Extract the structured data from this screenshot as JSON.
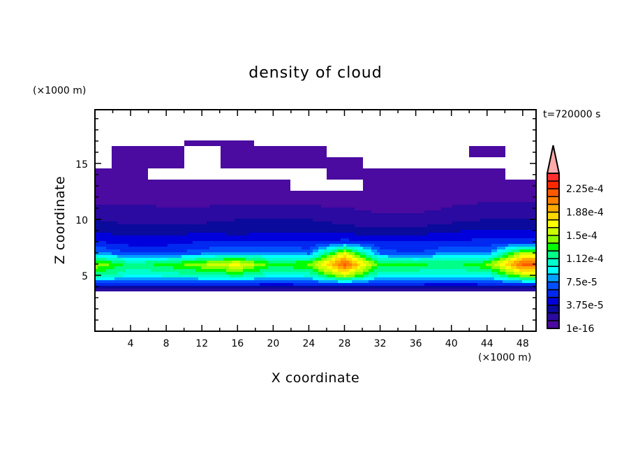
{
  "chart_data": {
    "type": "heatmap",
    "title": "density of cloud",
    "xlabel": "X coordinate",
    "ylabel": "Z coordinate",
    "x_unit": "(×1000 m)",
    "y_unit": "(×1000 m)",
    "annotation": "t=720000 s",
    "xlim": [
      0,
      49.5
    ],
    "ylim": [
      0,
      19.8
    ],
    "x_ticks": [
      4,
      8,
      12,
      16,
      20,
      24,
      28,
      32,
      36,
      40,
      44,
      48
    ],
    "y_ticks": [
      5,
      10,
      15
    ],
    "grid": false,
    "colorbar": {
      "placement": "right",
      "extend": "max",
      "levels_min": 1e-16,
      "level_step": 1.25e-05,
      "tick_labels": [
        "1e-16",
        "3.75e-5",
        "7.5e-5",
        "1.12e-4",
        "1.5e-4",
        "1.88e-4",
        "2.25e-4"
      ],
      "colors": [
        "#4b0aa0",
        "#2a0aa0",
        "#0a0a9c",
        "#0000dc",
        "#0028f0",
        "#0050ff",
        "#00a0ff",
        "#00ffff",
        "#00ffcc",
        "#00ff88",
        "#00ff00",
        "#88ff00",
        "#ccff00",
        "#ffff00",
        "#ffd800",
        "#ffaa00",
        "#ff8000",
        "#ff5a00",
        "#ff2800",
        "#ff2e2e"
      ],
      "over_color": "#ffaaaa"
    },
    "grid_x": [
      0,
      4,
      8,
      12,
      16,
      20,
      24,
      28,
      32,
      36,
      40,
      44,
      48
    ],
    "grid_z": [
      3,
      4,
      5,
      6,
      7,
      8,
      9,
      10,
      11,
      12,
      13,
      14,
      15,
      16,
      17
    ],
    "values": [
      [
        null,
        null,
        null,
        null,
        null,
        null,
        null,
        null,
        null,
        null,
        null,
        null,
        null
      ],
      [
        4e-05,
        4e-05,
        4e-05,
        4e-05,
        4e-05,
        3.5e-05,
        4e-05,
        4e-05,
        4e-05,
        4e-05,
        3.5e-05,
        4e-05,
        4e-05
      ],
      [
        0.00012,
        0.0001,
        0.000105,
        0.00011,
        0.00012,
        0.0001,
        0.000105,
        0.00016,
        0.0001,
        0.0001,
        0.0001,
        0.0001,
        0.00015
      ],
      [
        0.00015,
        0.00012,
        0.00013,
        0.00015,
        0.00017,
        0.00013,
        0.00014,
        0.00022,
        0.00013,
        0.00013,
        0.00012,
        0.00014,
        0.00022
      ],
      [
        8e-05,
        6e-05,
        6e-05,
        7e-05,
        8e-05,
        8e-05,
        7e-05,
        0.00016,
        7e-05,
        6e-05,
        8e-05,
        7e-05,
        0.00015
      ],
      [
        5e-05,
        4.5e-05,
        4.5e-05,
        5e-05,
        5e-05,
        5e-05,
        5e-05,
        5.5e-05,
        5e-05,
        5e-05,
        5e-05,
        5.5e-05,
        5.5e-05
      ],
      [
        3.5e-05,
        3e-05,
        3e-05,
        3.5e-05,
        3e-05,
        3.5e-05,
        3.5e-05,
        3e-05,
        3e-05,
        3e-05,
        3.5e-05,
        4e-05,
        4e-05
      ],
      [
        2.5e-05,
        2e-05,
        2e-05,
        2e-05,
        2.5e-05,
        2.5e-05,
        2.5e-05,
        2e-05,
        1.5e-05,
        1.5e-05,
        2e-05,
        2.5e-05,
        2.5e-05
      ],
      [
        1.5e-05,
        1.5e-05,
        1.3e-05,
        1.3e-05,
        1.5e-05,
        1.5e-05,
        1.5e-05,
        1.3e-05,
        1e-05,
        1e-05,
        1.3e-05,
        1.5e-05,
        1.5e-05
      ],
      [
        8e-06,
        8e-06,
        8e-06,
        8e-06,
        8e-06,
        8e-06,
        5e-06,
        3e-06,
        5e-06,
        8e-06,
        1e-05,
        1e-05,
        1e-05
      ],
      [
        3e-06,
        3e-06,
        3e-06,
        3e-06,
        2e-06,
        1e-06,
        null,
        null,
        2e-06,
        3e-06,
        5e-06,
        5e-06,
        5e-06
      ],
      [
        1e-06,
        1e-06,
        null,
        null,
        null,
        null,
        null,
        1e-06,
        1e-06,
        1e-06,
        1e-06,
        1e-06,
        null
      ],
      [
        null,
        1e-06,
        1e-06,
        null,
        1e-06,
        1e-06,
        1e-06,
        1e-06,
        null,
        null,
        null,
        null,
        null
      ],
      [
        null,
        1e-06,
        1e-06,
        null,
        1e-06,
        1e-06,
        1e-06,
        null,
        null,
        null,
        null,
        1e-06,
        null
      ],
      [
        null,
        null,
        null,
        1e-06,
        1e-06,
        null,
        null,
        null,
        null,
        null,
        null,
        null,
        null
      ]
    ]
  }
}
